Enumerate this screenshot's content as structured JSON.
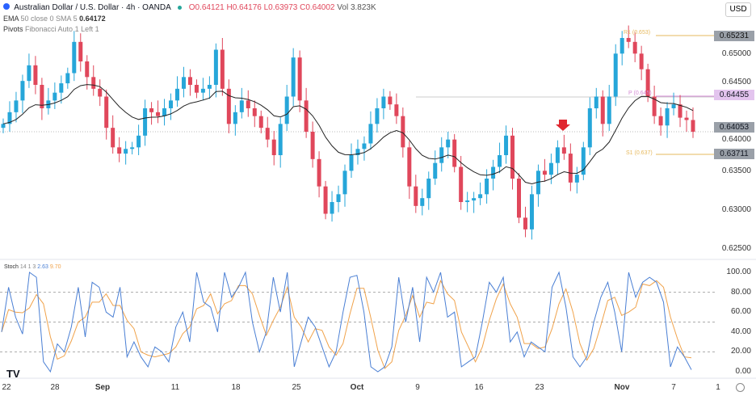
{
  "header": {
    "title": "Australian Dollar / U.S. Dollar · 4h · OANDA",
    "open": "O0.64121",
    "high": "H0.64176",
    "low": "L0.63973",
    "close": "C0.64002",
    "volume": "Vol 3.823K",
    "ema_label": "EMA",
    "ema_params": "50 close 0 SMA 5",
    "ema_value": "0.64172",
    "pivots_label": "Pivots",
    "pivots_params": "Fibonacci Auto 1 Left 1",
    "currency": "USD"
  },
  "colors": {
    "up": "#26a6d9",
    "down": "#e0475b",
    "ema": "#222222",
    "pivot_r1": "#e6b85c",
    "pivot_p": "#d48ad4",
    "pivot_s1": "#e6b85c",
    "stoch_k": "#4a7fd4",
    "stoch_d": "#f0a24a"
  },
  "chart_data": [
    {
      "type": "candlestick",
      "ylim": [
        0.625,
        0.6535
      ],
      "y_ticks": [
        "0.65000",
        "0.64500",
        "0.64000",
        "0.63500",
        "0.63000",
        "0.62500"
      ],
      "x_ticks": [
        "22",
        "28",
        "Sep",
        "11",
        "18",
        "25",
        "Oct",
        "9",
        "16",
        "23",
        "Nov",
        "7",
        "1"
      ],
      "close": [
        0.641,
        0.6425,
        0.644,
        0.6465,
        0.6485,
        0.646,
        0.643,
        0.644,
        0.645,
        0.6462,
        0.6475,
        0.6515,
        0.649,
        0.647,
        0.6455,
        0.6445,
        0.6405,
        0.638,
        0.6372,
        0.6378,
        0.638,
        0.6395,
        0.643,
        0.6425,
        0.642,
        0.643,
        0.644,
        0.6455,
        0.647,
        0.646,
        0.645,
        0.6455,
        0.646,
        0.6505,
        0.6455,
        0.641,
        0.6425,
        0.644,
        0.643,
        0.642,
        0.6405,
        0.639,
        0.637,
        0.641,
        0.6445,
        0.6495,
        0.644,
        0.64,
        0.6365,
        0.633,
        0.6295,
        0.631,
        0.632,
        0.635,
        0.637,
        0.6378,
        0.6385,
        0.641,
        0.643,
        0.6445,
        0.6435,
        0.642,
        0.638,
        0.633,
        0.6305,
        0.6315,
        0.634,
        0.636,
        0.638,
        0.639,
        0.6355,
        0.631,
        0.6312,
        0.6315,
        0.632,
        0.634,
        0.6355,
        0.637,
        0.6395,
        0.634,
        0.629,
        0.6275,
        0.632,
        0.635,
        0.6345,
        0.636,
        0.638,
        0.6372,
        0.6335,
        0.6345,
        0.638,
        0.643,
        0.6445,
        0.641,
        0.6445,
        0.65,
        0.652,
        0.6515,
        0.65,
        0.648,
        0.6445,
        0.642,
        0.6408,
        0.643,
        0.6435,
        0.6418,
        0.6415,
        0.64
      ],
      "horizontal_lines": [
        {
          "label": "R1 (0.653)",
          "price_tag": "0.65231"
        },
        {
          "label": "P (0.645)",
          "price_tag": "0.64455"
        },
        {
          "label": "S1 (0.637)",
          "price_tag": "0.63711"
        },
        {
          "label": "",
          "price_tag": "0.64053"
        }
      ],
      "annotations": [
        "down-arrow"
      ]
    },
    {
      "type": "line",
      "title": "Stoch",
      "params": "14 1 3",
      "k_value": "2.63",
      "d_value": "9.70",
      "ylim": [
        0,
        100
      ],
      "y_ticks": [
        "100.00",
        "80.00",
        "60.00",
        "40.00",
        "20.00",
        "0.00"
      ],
      "k": [
        40,
        85,
        55,
        38,
        100,
        95,
        10,
        0,
        28,
        20,
        45,
        85,
        35,
        90,
        85,
        60,
        55,
        85,
        15,
        30,
        15,
        5,
        25,
        20,
        10,
        45,
        60,
        30,
        100,
        70,
        65,
        40,
        100,
        75,
        85,
        100,
        50,
        20,
        40,
        95,
        60,
        100,
        5,
        30,
        55,
        45,
        25,
        5,
        20,
        60,
        95,
        97,
        60,
        5,
        0,
        5,
        25,
        95,
        50,
        85,
        30,
        95,
        80,
        100,
        55,
        60,
        5,
        10,
        15,
        50,
        90,
        80,
        95,
        30,
        40,
        15,
        30,
        25,
        20,
        85,
        100,
        65,
        15,
        5,
        15,
        50,
        75,
        90,
        60,
        20,
        100,
        75,
        90,
        95,
        90,
        70,
        5,
        25,
        15,
        2
      ]
    }
  ]
}
